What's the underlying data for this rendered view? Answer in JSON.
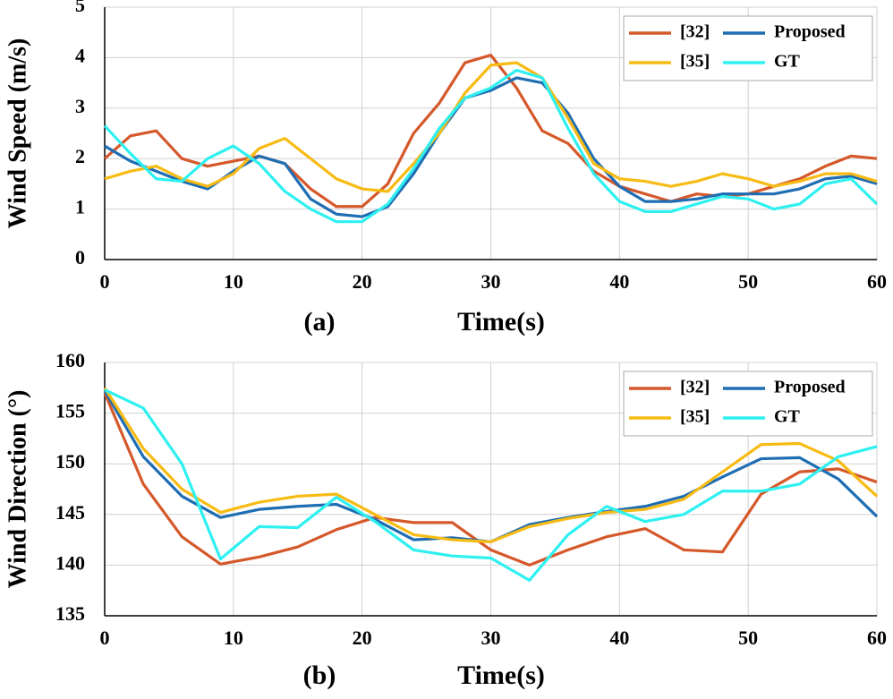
{
  "chart_data": [
    {
      "type": "line",
      "panel_label": "(a)",
      "x_label": "Time(s)",
      "y_label": "Wind Speed (m/s)",
      "xlim": [
        0,
        60
      ],
      "xticks": [
        0,
        10,
        20,
        30,
        40,
        50,
        60
      ],
      "ylim": [
        0,
        5
      ],
      "yticks": [
        0,
        1,
        2,
        3,
        4,
        5
      ],
      "grid": true,
      "legend": "upper right",
      "x": [
        0,
        2,
        4,
        6,
        8,
        10,
        12,
        14,
        16,
        18,
        20,
        22,
        24,
        26,
        28,
        30,
        32,
        34,
        36,
        38,
        40,
        42,
        44,
        46,
        48,
        50,
        52,
        54,
        56,
        58,
        60
      ],
      "series": [
        {
          "name": "[32]",
          "color": "#d5582a",
          "values": [
            2.0,
            2.45,
            2.55,
            2.0,
            1.85,
            1.95,
            2.05,
            1.9,
            1.4,
            1.05,
            1.05,
            1.5,
            2.5,
            3.1,
            3.9,
            4.05,
            3.4,
            2.55,
            2.3,
            1.75,
            1.45,
            1.3,
            1.15,
            1.3,
            1.25,
            1.3,
            1.45,
            1.6,
            1.85,
            2.05,
            2.0
          ]
        },
        {
          "name": "Proposed",
          "color": "#1f6db3",
          "values": [
            2.25,
            1.95,
            1.75,
            1.55,
            1.4,
            1.75,
            2.05,
            1.9,
            1.2,
            0.9,
            0.85,
            1.05,
            1.7,
            2.5,
            3.2,
            3.35,
            3.6,
            3.5,
            2.9,
            2.0,
            1.45,
            1.15,
            1.15,
            1.2,
            1.3,
            1.3,
            1.3,
            1.4,
            1.6,
            1.65,
            1.5
          ]
        },
        {
          "name": "[35]",
          "color": "#f7bb14",
          "values": [
            1.6,
            1.75,
            1.85,
            1.6,
            1.45,
            1.7,
            2.2,
            2.4,
            2.0,
            1.6,
            1.4,
            1.35,
            1.9,
            2.5,
            3.3,
            3.85,
            3.9,
            3.6,
            2.8,
            1.9,
            1.6,
            1.55,
            1.45,
            1.55,
            1.7,
            1.6,
            1.45,
            1.55,
            1.7,
            1.7,
            1.55
          ]
        },
        {
          "name": "GT",
          "color": "#2ef0f0",
          "values": [
            2.65,
            2.1,
            1.6,
            1.55,
            2.0,
            2.25,
            1.9,
            1.35,
            1.0,
            0.75,
            0.75,
            1.1,
            1.8,
            2.6,
            3.2,
            3.4,
            3.75,
            3.6,
            2.6,
            1.7,
            1.15,
            0.95,
            0.95,
            1.1,
            1.25,
            1.2,
            1.0,
            1.1,
            1.5,
            1.6,
            1.1
          ]
        }
      ]
    },
    {
      "type": "line",
      "panel_label": "(b)",
      "x_label": "Time(s)",
      "y_label": "Wind Direction (°)",
      "xlim": [
        0,
        60
      ],
      "xticks": [
        0,
        10,
        20,
        30,
        40,
        50,
        60
      ],
      "ylim": [
        135,
        160
      ],
      "yticks": [
        135,
        140,
        145,
        150,
        155,
        160
      ],
      "grid": true,
      "legend": "upper right",
      "x": [
        0,
        3,
        6,
        9,
        12,
        15,
        18,
        21,
        24,
        27,
        30,
        33,
        36,
        39,
        42,
        45,
        48,
        51,
        54,
        57,
        60
      ],
      "series": [
        {
          "name": "[32]",
          "color": "#d5582a",
          "values": [
            157,
            148,
            142.8,
            140.1,
            140.8,
            141.8,
            143.5,
            144.7,
            144.2,
            144.2,
            141.5,
            140.0,
            141.5,
            142.8,
            143.6,
            141.5,
            141.3,
            147,
            149.2,
            149.5,
            148.2
          ]
        },
        {
          "name": "Proposed",
          "color": "#1f6db3",
          "values": [
            157.2,
            150.7,
            146.8,
            144.7,
            145.5,
            145.8,
            146.0,
            144.5,
            142.5,
            142.7,
            142.3,
            144,
            144.7,
            145.3,
            145.8,
            146.8,
            148.7,
            150.5,
            150.6,
            148.5,
            144.8
          ]
        },
        {
          "name": "[35]",
          "color": "#f7bb14",
          "values": [
            157.5,
            151.5,
            147.5,
            145.2,
            146.2,
            146.8,
            147.0,
            145,
            143,
            142.5,
            142.3,
            143.8,
            144.6,
            145.2,
            145.5,
            146.5,
            149.2,
            151.9,
            152,
            150.3,
            146.8
          ]
        },
        {
          "name": "GT",
          "color": "#2ef0f0",
          "values": [
            157.3,
            155.5,
            150,
            140.6,
            143.8,
            143.7,
            146.7,
            144.3,
            141.5,
            140.9,
            140.7,
            138.5,
            143.0,
            145.8,
            144.3,
            145,
            147.3,
            147.3,
            148,
            150.7,
            151.7
          ]
        }
      ]
    }
  ]
}
